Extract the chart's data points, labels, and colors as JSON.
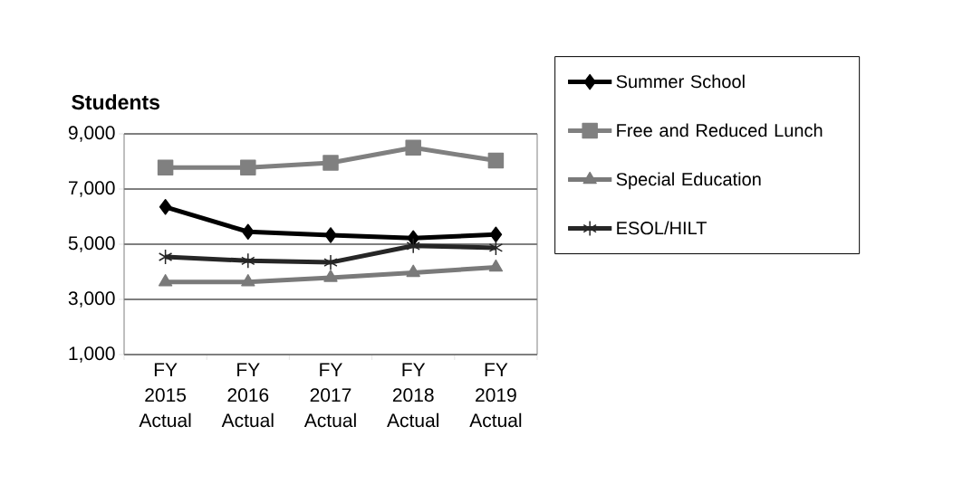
{
  "chart_data": {
    "type": "line",
    "title": "Students",
    "categories": [
      "FY 2015 Actual",
      "FY 2016 Actual",
      "FY 2017 Actual",
      "FY 2018 Actual",
      "FY 2019 Actual"
    ],
    "series": [
      {
        "name": "Summer School",
        "color": "#000000",
        "marker": "diamond",
        "values": [
          6350,
          5450,
          5330,
          5220,
          5350
        ]
      },
      {
        "name": "Free and Reduced Lunch",
        "color": "#808080",
        "marker": "square",
        "values": [
          7780,
          7780,
          7950,
          8500,
          8030
        ]
      },
      {
        "name": "Special Education",
        "color": "#7a7a7a",
        "marker": "triangle",
        "values": [
          3630,
          3630,
          3790,
          3970,
          4160
        ]
      },
      {
        "name": "ESOL/HILT",
        "color": "#262626",
        "marker": "cross",
        "values": [
          4540,
          4400,
          4340,
          4940,
          4870
        ]
      }
    ],
    "ylim": [
      1000,
      9000
    ],
    "yticks": [
      {
        "value": 1000,
        "label": "1,000"
      },
      {
        "value": 3000,
        "label": "3,000"
      },
      {
        "value": 5000,
        "label": "5,000"
      },
      {
        "value": 7000,
        "label": "7,000"
      },
      {
        "value": 9000,
        "label": "9,000"
      }
    ],
    "grid": "y",
    "legend": "right",
    "line_style": "solid"
  }
}
